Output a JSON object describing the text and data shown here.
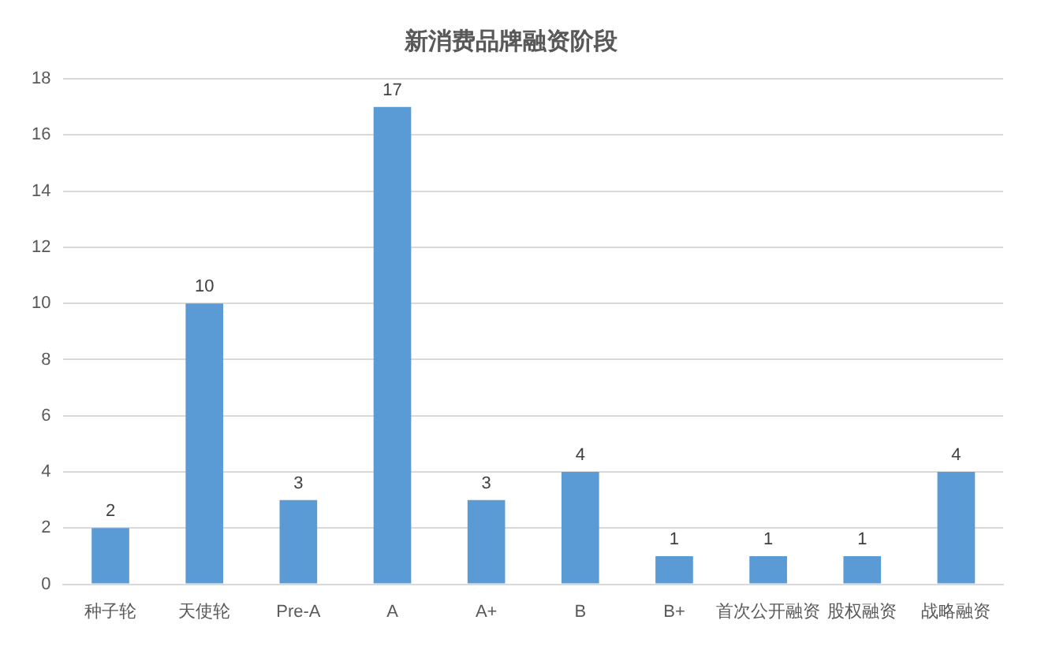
{
  "chart_data": {
    "type": "bar",
    "title": "新消费品牌融资阶段",
    "categories": [
      "种子轮",
      "天使轮",
      "Pre-A",
      "A",
      "A+",
      "B",
      "B+",
      "首次公开融资",
      "股权融资",
      "战略融资"
    ],
    "values": [
      2,
      10,
      3,
      17,
      3,
      4,
      1,
      1,
      1,
      4
    ],
    "color": "#5b9bd5",
    "ylim": [
      0,
      18
    ],
    "yticks": [
      0,
      2,
      4,
      6,
      8,
      10,
      12,
      14,
      16,
      18
    ],
    "grid": "y",
    "data_labels": true,
    "legend": false
  }
}
